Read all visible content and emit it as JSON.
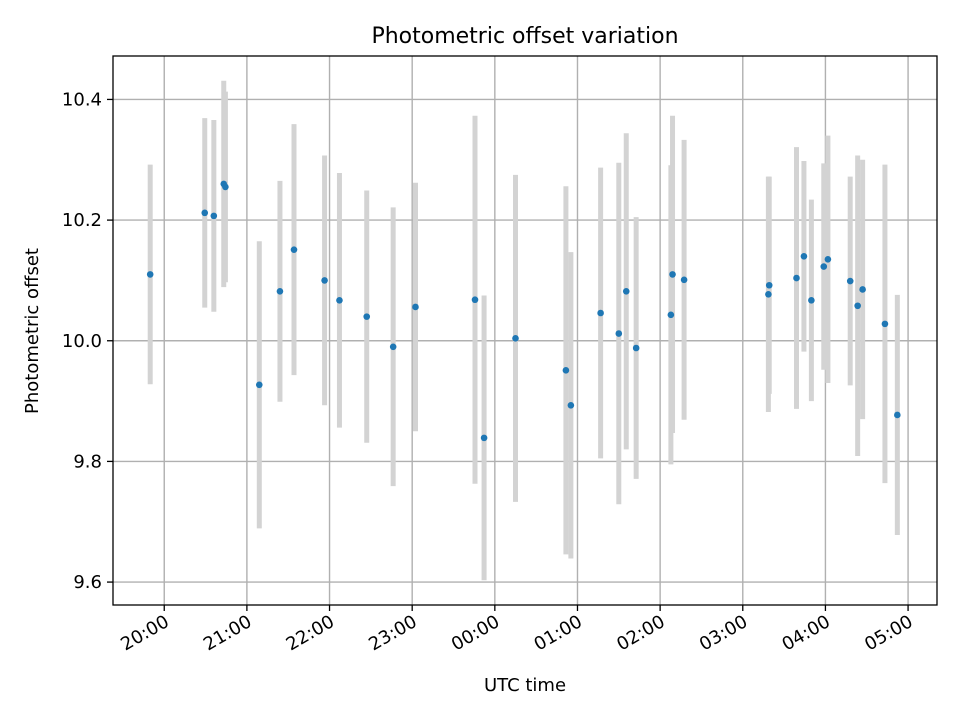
{
  "chart_data": {
    "type": "scatter",
    "title": "Photometric offset variation",
    "xlabel": "UTC time",
    "ylabel": "Photometric offset",
    "xlim": [
      19.38,
      29.35
    ],
    "ylim": [
      9.562,
      10.472
    ],
    "x_ticks": [
      {
        "value": 20,
        "label": "20:00"
      },
      {
        "value": 21,
        "label": "21:00"
      },
      {
        "value": 22,
        "label": "22:00"
      },
      {
        "value": 23,
        "label": "23:00"
      },
      {
        "value": 24,
        "label": "00:00"
      },
      {
        "value": 25,
        "label": "01:00"
      },
      {
        "value": 26,
        "label": "02:00"
      },
      {
        "value": 27,
        "label": "03:00"
      },
      {
        "value": 28,
        "label": "04:00"
      },
      {
        "value": 29,
        "label": "05:00"
      }
    ],
    "y_ticks": [
      {
        "value": 9.6,
        "label": "9.6"
      },
      {
        "value": 9.8,
        "label": "9.8"
      },
      {
        "value": 10.0,
        "label": "10.0"
      },
      {
        "value": 10.2,
        "label": "10.2"
      },
      {
        "value": 10.4,
        "label": "10.4"
      }
    ],
    "grid": true,
    "point_color": "#1f77b4",
    "errorbar_color": "#d3d3d3",
    "points": [
      {
        "x": 19.83,
        "y": 10.11,
        "err": 0.182
      },
      {
        "x": 20.49,
        "y": 10.212,
        "err": 0.157
      },
      {
        "x": 20.6,
        "y": 10.207,
        "err": 0.159
      },
      {
        "x": 20.72,
        "y": 10.26,
        "err": 0.171
      },
      {
        "x": 20.74,
        "y": 10.255,
        "err": 0.158
      },
      {
        "x": 21.15,
        "y": 9.927,
        "err": 0.238
      },
      {
        "x": 21.4,
        "y": 10.082,
        "err": 0.183
      },
      {
        "x": 21.57,
        "y": 10.151,
        "err": 0.208
      },
      {
        "x": 21.94,
        "y": 10.1,
        "err": 0.207
      },
      {
        "x": 22.12,
        "y": 10.067,
        "err": 0.211
      },
      {
        "x": 22.45,
        "y": 10.04,
        "err": 0.209
      },
      {
        "x": 22.77,
        "y": 9.99,
        "err": 0.231
      },
      {
        "x": 23.04,
        "y": 10.056,
        "err": 0.206
      },
      {
        "x": 23.76,
        "y": 10.068,
        "err": 0.305
      },
      {
        "x": 23.87,
        "y": 9.839,
        "err": 0.236
      },
      {
        "x": 24.25,
        "y": 10.004,
        "err": 0.271
      },
      {
        "x": 24.86,
        "y": 9.951,
        "err": 0.305
      },
      {
        "x": 24.92,
        "y": 9.893,
        "err": 0.254
      },
      {
        "x": 25.28,
        "y": 10.046,
        "err": 0.241
      },
      {
        "x": 25.5,
        "y": 10.012,
        "err": 0.283
      },
      {
        "x": 25.59,
        "y": 10.082,
        "err": 0.262
      },
      {
        "x": 25.71,
        "y": 9.988,
        "err": 0.217
      },
      {
        "x": 26.13,
        "y": 10.043,
        "err": 0.248
      },
      {
        "x": 26.15,
        "y": 10.11,
        "err": 0.263
      },
      {
        "x": 26.29,
        "y": 10.101,
        "err": 0.232
      },
      {
        "x": 27.31,
        "y": 10.077,
        "err": 0.195
      },
      {
        "x": 27.32,
        "y": 10.092,
        "err": 0.18
      },
      {
        "x": 27.65,
        "y": 10.104,
        "err": 0.217
      },
      {
        "x": 27.74,
        "y": 10.14,
        "err": 0.158
      },
      {
        "x": 27.83,
        "y": 10.067,
        "err": 0.167
      },
      {
        "x": 27.98,
        "y": 10.123,
        "err": 0.171
      },
      {
        "x": 28.03,
        "y": 10.135,
        "err": 0.205
      },
      {
        "x": 28.3,
        "y": 10.099,
        "err": 0.173
      },
      {
        "x": 28.39,
        "y": 10.058,
        "err": 0.249
      },
      {
        "x": 28.45,
        "y": 10.085,
        "err": 0.215
      },
      {
        "x": 28.72,
        "y": 10.028,
        "err": 0.264
      },
      {
        "x": 28.87,
        "y": 9.877,
        "err": 0.199
      }
    ]
  }
}
